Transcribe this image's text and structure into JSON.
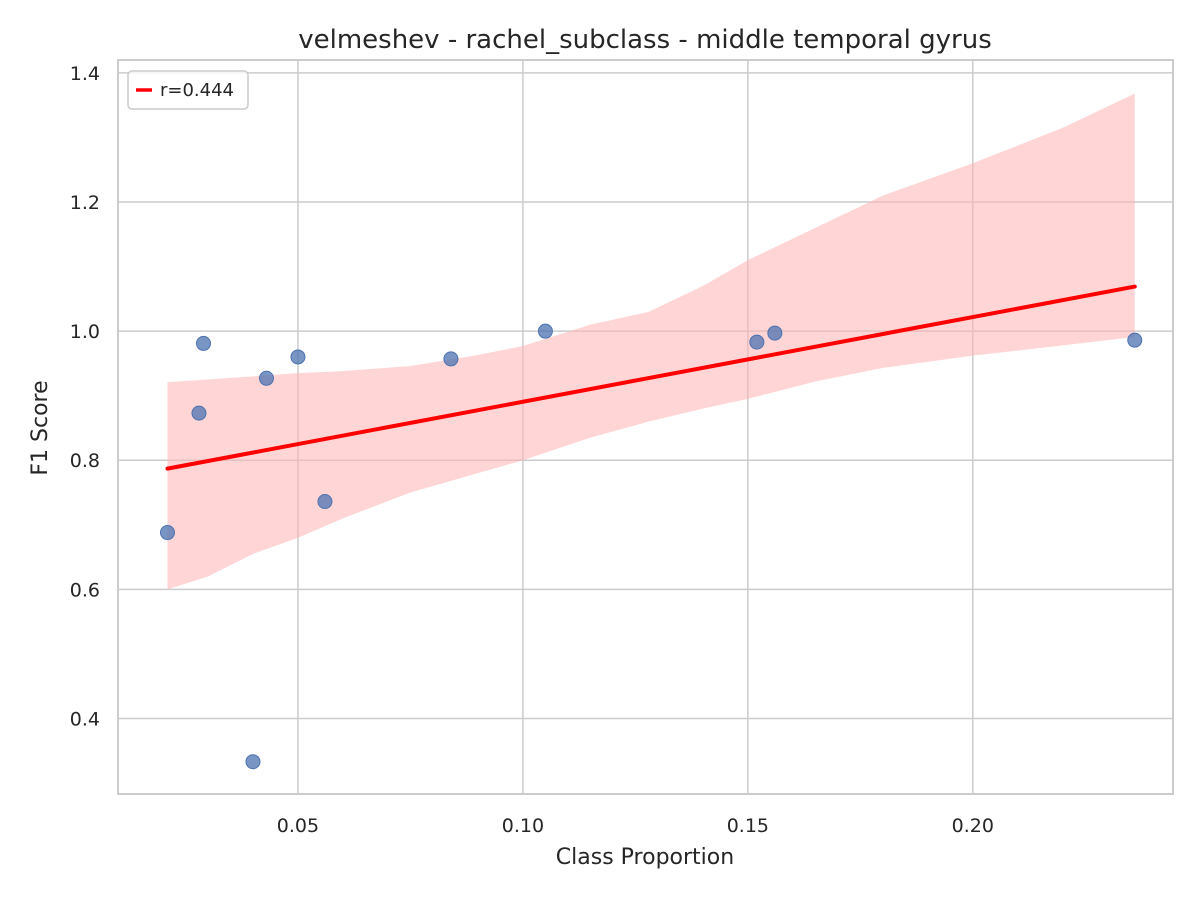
{
  "chart_data": {
    "type": "scatter",
    "title": "velmeshev - rachel_subclass - middle temporal gyrus",
    "xlabel": "Class Proportion",
    "ylabel": "F1 Score",
    "xlim": [
      0.01,
      0.2445
    ],
    "ylim": [
      0.283,
      1.42
    ],
    "xticks": [
      0.05,
      0.1,
      0.15,
      0.2
    ],
    "xtick_labels": [
      "0.05",
      "0.10",
      "0.15",
      "0.20"
    ],
    "yticks": [
      0.4,
      0.6,
      0.8,
      1.0,
      1.2,
      1.4
    ],
    "ytick_labels": [
      "0.4",
      "0.6",
      "0.8",
      "1.0",
      "1.2",
      "1.4"
    ],
    "grid": true,
    "legend_position": "top-left",
    "series": [
      {
        "name": "points",
        "color": "#4c72b0",
        "points": [
          {
            "x": 0.021,
            "y": 0.688
          },
          {
            "x": 0.028,
            "y": 0.873
          },
          {
            "x": 0.029,
            "y": 0.981
          },
          {
            "x": 0.04,
            "y": 0.333
          },
          {
            "x": 0.043,
            "y": 0.927
          },
          {
            "x": 0.05,
            "y": 0.96
          },
          {
            "x": 0.056,
            "y": 0.736
          },
          {
            "x": 0.084,
            "y": 0.957
          },
          {
            "x": 0.105,
            "y": 1.0
          },
          {
            "x": 0.152,
            "y": 0.983
          },
          {
            "x": 0.156,
            "y": 0.997
          },
          {
            "x": 0.236,
            "y": 0.986
          }
        ]
      }
    ],
    "regression": {
      "label": "r=0.444",
      "color": "#ff0000",
      "band_color": "#ffb3b3",
      "x": [
        0.021,
        0.236
      ],
      "y": [
        0.787,
        1.069
      ],
      "ci_x": [
        0.021,
        0.03,
        0.04,
        0.05,
        0.06,
        0.075,
        0.09,
        0.1,
        0.115,
        0.128,
        0.14,
        0.15,
        0.165,
        0.18,
        0.2,
        0.22,
        0.236
      ],
      "ci_upper": [
        0.921,
        0.925,
        0.93,
        0.935,
        0.938,
        0.946,
        0.963,
        0.977,
        1.01,
        1.03,
        1.07,
        1.11,
        1.16,
        1.21,
        1.26,
        1.315,
        1.368
      ],
      "ci_lower": [
        0.6,
        0.62,
        0.655,
        0.68,
        0.71,
        0.75,
        0.78,
        0.8,
        0.835,
        0.86,
        0.88,
        0.895,
        0.922,
        0.943,
        0.962,
        0.978,
        0.991
      ]
    }
  }
}
